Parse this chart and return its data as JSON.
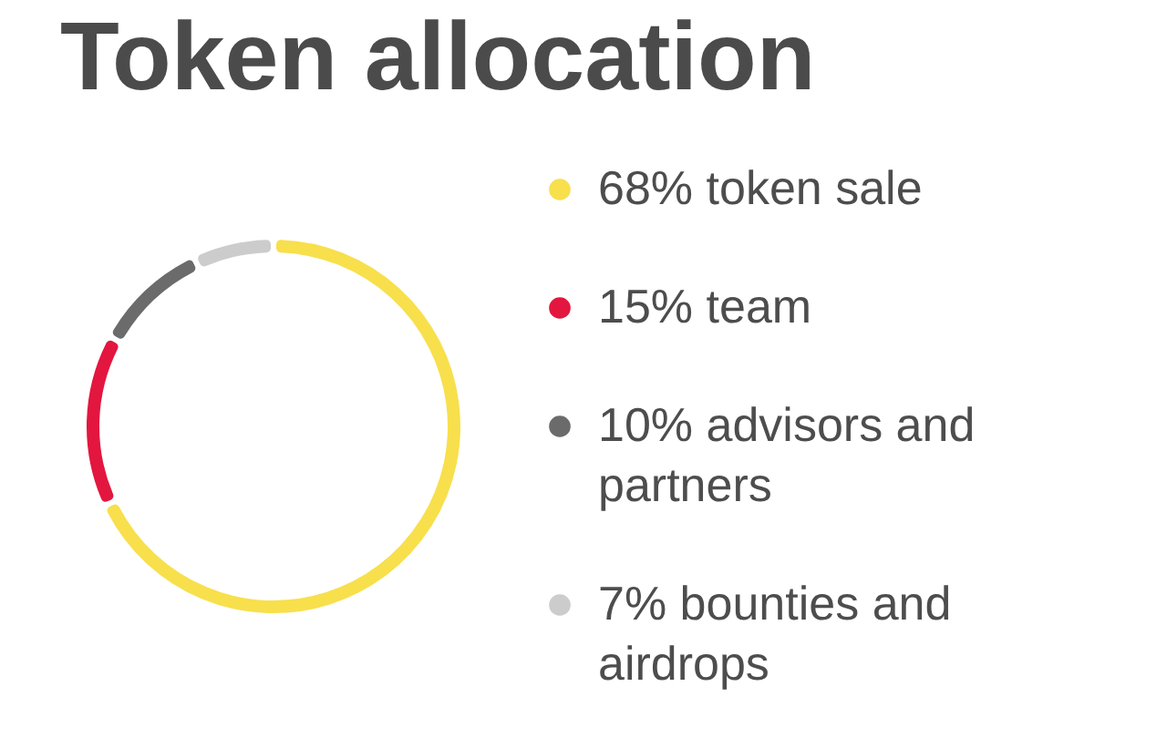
{
  "chart_data": {
    "type": "donut",
    "title": "Token allocation",
    "categories": [
      "68% token sale",
      "15% team",
      "10% advisors and partners",
      "7% bounties and airdrops"
    ],
    "values": [
      68,
      15,
      10,
      7
    ],
    "colors": [
      "#f8df4c",
      "#e3163f",
      "#6b6b6b",
      "#cccccc"
    ],
    "legend": "right"
  }
}
